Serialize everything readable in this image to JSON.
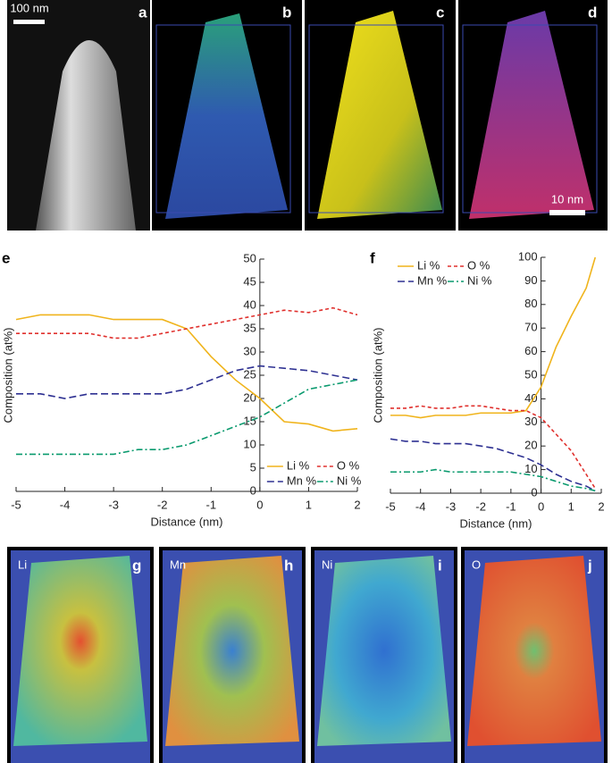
{
  "panels": {
    "labels": [
      "a",
      "b",
      "c",
      "d",
      "e",
      "f",
      "g",
      "h",
      "i",
      "j"
    ],
    "scale_bars": [
      "100 nm",
      "10 nm"
    ],
    "map_elements": [
      "Li",
      "Mn",
      "Ni",
      "O"
    ]
  },
  "chart_data": [
    {
      "type": "line",
      "x_label": "Distance (nm)",
      "y_label": "Composition (at%)",
      "x": [
        -5,
        -4.5,
        -4,
        -3.5,
        -3,
        -2.5,
        -2,
        -1.5,
        -1,
        -0.5,
        0,
        0.5,
        1,
        1.5,
        2
      ],
      "series": [
        {
          "name": "Li %",
          "color": "#f0b41c",
          "dash": "solid",
          "values": [
            37,
            38,
            38,
            38,
            37,
            37,
            37,
            35,
            29,
            24,
            20,
            15,
            14.5,
            13,
            13.5
          ]
        },
        {
          "name": "O %",
          "color": "#e0312e",
          "dash": "short",
          "values": [
            34,
            34,
            34,
            34,
            33,
            33,
            34,
            35,
            36,
            37,
            38,
            39,
            38.5,
            39.5,
            38
          ]
        },
        {
          "name": "Mn %",
          "color": "#2e3192",
          "dash": "long",
          "values": [
            21,
            21,
            20,
            21,
            21,
            21,
            21,
            22,
            24,
            26,
            27,
            26.5,
            26,
            25,
            24
          ]
        },
        {
          "name": "Ni %",
          "color": "#0a9a6e",
          "dash": "dashdot",
          "values": [
            8,
            8,
            8,
            8,
            8,
            9,
            9,
            10,
            12,
            14,
            16,
            19,
            22,
            23,
            24
          ]
        }
      ],
      "xlim": [
        -5,
        2
      ],
      "xticks": [
        -5,
        -4,
        -3,
        -2,
        -1,
        0,
        1,
        2
      ],
      "ylim": [
        0,
        50
      ],
      "yticks": [
        0,
        5,
        10,
        15,
        20,
        25,
        30,
        35,
        40,
        45,
        50
      ],
      "legend": "lower right"
    },
    {
      "type": "line",
      "x_label": "Distance (nm)",
      "y_label": "Composition (at%)",
      "x": [
        -5,
        -4.5,
        -4,
        -3.5,
        -3,
        -2.5,
        -2,
        -1.5,
        -1,
        -0.5,
        0,
        0.5,
        1,
        1.5,
        1.8
      ],
      "series": [
        {
          "name": "Li %",
          "color": "#f0b41c",
          "dash": "solid",
          "values": [
            33,
            33,
            32,
            33,
            33,
            33,
            34,
            34,
            34,
            35,
            45,
            62,
            75,
            87,
            100
          ]
        },
        {
          "name": "O %",
          "color": "#e0312e",
          "dash": "short",
          "values": [
            36,
            36,
            37,
            36,
            36,
            37,
            37,
            36,
            35,
            35,
            32,
            25,
            18,
            8,
            2
          ]
        },
        {
          "name": "Mn %",
          "color": "#2e3192",
          "dash": "long",
          "values": [
            23,
            22,
            22,
            21,
            21,
            21,
            20,
            19,
            17,
            15,
            12,
            8,
            5,
            3,
            1
          ]
        },
        {
          "name": "Ni %",
          "color": "#0a9a6e",
          "dash": "dashdot",
          "values": [
            9,
            9,
            9,
            10,
            9,
            9,
            9,
            9,
            9,
            8,
            7,
            5,
            3,
            2,
            1
          ]
        }
      ],
      "xlim": [
        -5,
        2
      ],
      "xticks": [
        -5,
        -4,
        -3,
        -2,
        -1,
        0,
        1,
        2
      ],
      "ylim": [
        0,
        100
      ],
      "yticks": [
        0,
        10,
        20,
        30,
        40,
        50,
        60,
        70,
        80,
        90,
        100
      ],
      "legend": "upper left"
    }
  ]
}
